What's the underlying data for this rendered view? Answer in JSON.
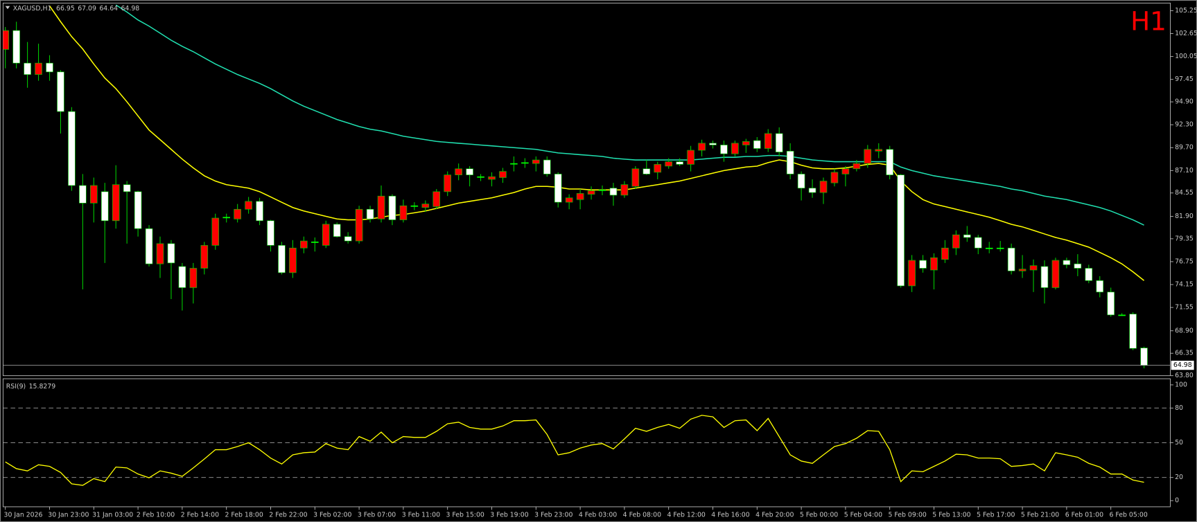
{
  "chart_data": [
    {
      "type": "candlestick",
      "title": "XAGUSD,H1",
      "timeframe_label": "H1",
      "categories": [
        "30 Jan 2026",
        null,
        null,
        null,
        "30 Jan 23:00",
        null,
        null,
        null,
        "31 Jan 03:00",
        null,
        null,
        null,
        "2 Feb 10:00",
        null,
        null,
        null,
        "2 Feb 14:00",
        null,
        null,
        null,
        "2 Feb 18:00",
        null,
        null,
        null,
        "2 Feb 22:00",
        null,
        null,
        null,
        "3 Feb 02:00",
        null,
        null,
        null,
        "3 Feb 07:00",
        null,
        null,
        null,
        "3 Feb 11:00",
        null,
        null,
        null,
        "3 Feb 15:00",
        null,
        null,
        null,
        "3 Feb 19:00",
        null,
        null,
        null,
        "3 Feb 23:00",
        null,
        null,
        null,
        "4 Feb 03:00",
        null,
        null,
        null,
        "4 Feb 08:00",
        null,
        null,
        null,
        "4 Feb 12:00",
        null,
        null,
        null,
        "4 Feb 16:00",
        null,
        null,
        null,
        "4 Feb 20:00",
        null,
        null,
        null,
        "5 Feb 00:00",
        null,
        null,
        null,
        "5 Feb 04:00",
        null,
        null,
        null,
        "5 Feb 09:00",
        null,
        null,
        null,
        "5 Feb 13:00",
        null,
        null,
        null,
        "5 Feb 17:00",
        null,
        null,
        null,
        "5 Feb 21:00",
        null,
        null,
        null,
        "6 Feb 01:00",
        null,
        null,
        null,
        "6 Feb 05:00",
        null,
        null,
        null
      ],
      "open": [
        100.85,
        103.0,
        99.3,
        98.0,
        99.3,
        98.3,
        93.8,
        85.4,
        83.4,
        84.7,
        81.4,
        85.5,
        84.7,
        80.5,
        76.5,
        78.8,
        76.2,
        73.8,
        76.0,
        78.6,
        81.8,
        81.6,
        82.7,
        83.6,
        81.4,
        78.6,
        75.5,
        78.3,
        79.0,
        78.6,
        81.0,
        79.6,
        79.1,
        82.7,
        81.6,
        84.2,
        81.5,
        83.1,
        82.9,
        83.0,
        84.7,
        86.6,
        87.3,
        86.4,
        86.1,
        86.3,
        87.9,
        88.0,
        87.9,
        88.3,
        86.7,
        83.5,
        83.8,
        84.4,
        84.9,
        85.1,
        84.3,
        85.3,
        87.3,
        86.9,
        87.6,
        88.1,
        87.8,
        89.4,
        90.2,
        90.0,
        89.0,
        90.0,
        90.5,
        89.6,
        91.3,
        89.3,
        86.7,
        85.1,
        84.6,
        85.7,
        86.7,
        87.3,
        87.9,
        89.3,
        89.5,
        86.6,
        74.0,
        76.9,
        75.8,
        77.0,
        78.3,
        79.8,
        79.5,
        78.3,
        78.3,
        78.3,
        75.7,
        75.8,
        76.2,
        73.8,
        76.9,
        76.5,
        76.0,
        74.6,
        73.3,
        70.7,
        70.8,
        66.95
      ],
      "high": [
        103.4,
        104.0,
        101.7,
        101.5,
        100.2,
        98.5,
        94.3,
        86.7,
        86.3,
        85.7,
        87.7,
        85.9,
        84.8,
        80.9,
        79.6,
        79.2,
        76.6,
        76.6,
        79.0,
        82.2,
        82.2,
        83.3,
        84.1,
        84.0,
        81.5,
        79.0,
        79.2,
        79.6,
        79.5,
        81.4,
        81.2,
        80.1,
        83.1,
        83.1,
        85.4,
        84.4,
        83.8,
        83.5,
        83.7,
        85.0,
        87.0,
        87.9,
        87.6,
        86.7,
        86.9,
        87.4,
        88.7,
        88.5,
        88.7,
        88.7,
        86.9,
        84.4,
        85.0,
        85.3,
        85.4,
        85.7,
        85.9,
        87.6,
        88.3,
        88.1,
        88.5,
        88.5,
        89.9,
        90.6,
        90.5,
        90.5,
        90.5,
        90.7,
        90.9,
        91.8,
        92.0,
        90.2,
        87.0,
        86.1,
        86.3,
        87.3,
        87.6,
        88.3,
        90.0,
        90.2,
        89.9,
        86.7,
        77.5,
        77.5,
        77.7,
        79.2,
        80.3,
        80.8,
        79.8,
        79.0,
        79.1,
        78.8,
        77.5,
        77.0,
        76.9,
        77.2,
        77.2,
        77.6,
        76.4,
        75.1,
        73.8,
        70.9,
        71.0,
        67.09
      ],
      "low": [
        98.7,
        98.7,
        96.5,
        97.3,
        97.3,
        91.3,
        84.8,
        73.6,
        81.2,
        76.6,
        80.5,
        78.8,
        79.6,
        76.2,
        74.9,
        72.5,
        71.2,
        72.0,
        75.3,
        78.1,
        81.2,
        81.2,
        82.2,
        80.9,
        77.9,
        75.3,
        74.9,
        77.7,
        77.9,
        78.3,
        79.5,
        78.8,
        78.8,
        81.2,
        81.2,
        80.9,
        81.2,
        82.6,
        82.4,
        82.7,
        84.2,
        86.0,
        85.3,
        85.9,
        85.3,
        85.7,
        87.0,
        87.4,
        87.0,
        86.4,
        82.9,
        82.7,
        82.7,
        83.8,
        84.3,
        83.1,
        84.0,
        85.0,
        86.6,
        86.1,
        87.3,
        87.6,
        87.0,
        88.7,
        89.6,
        88.1,
        88.7,
        89.1,
        89.2,
        89.2,
        88.7,
        86.1,
        83.7,
        84.0,
        83.3,
        85.3,
        85.3,
        87.0,
        87.4,
        88.5,
        86.1,
        73.8,
        73.3,
        75.5,
        73.6,
        76.6,
        77.5,
        79.0,
        77.6,
        77.7,
        77.9,
        75.3,
        74.9,
        73.3,
        72.0,
        73.6,
        76.0,
        75.1,
        74.3,
        72.7,
        70.5,
        70.6,
        66.7,
        64.64
      ],
      "close": [
        103.0,
        99.3,
        98.0,
        99.3,
        98.3,
        93.8,
        85.4,
        83.4,
        85.4,
        81.4,
        85.5,
        84.7,
        80.5,
        76.5,
        78.8,
        76.6,
        73.8,
        76.0,
        78.6,
        81.7,
        81.8,
        82.7,
        83.6,
        81.4,
        78.6,
        75.5,
        78.3,
        79.1,
        79.0,
        81.0,
        79.6,
        79.1,
        82.7,
        81.6,
        84.2,
        81.5,
        83.1,
        83.1,
        83.3,
        84.7,
        86.6,
        87.3,
        86.6,
        86.4,
        86.4,
        87.0,
        87.9,
        88.0,
        88.3,
        86.7,
        83.5,
        84.0,
        84.5,
        84.8,
        84.9,
        84.3,
        85.5,
        87.3,
        86.7,
        87.8,
        88.1,
        87.8,
        89.4,
        90.2,
        90.0,
        89.0,
        90.2,
        90.4,
        89.6,
        91.3,
        89.2,
        86.7,
        85.1,
        84.6,
        85.9,
        86.9,
        87.3,
        87.9,
        89.5,
        89.5,
        86.6,
        74.0,
        76.9,
        76.0,
        77.2,
        78.3,
        79.8,
        79.5,
        78.3,
        78.3,
        78.3,
        75.7,
        75.9,
        76.3,
        73.8,
        76.9,
        76.4,
        76.0,
        74.6,
        73.3,
        70.7,
        70.7,
        66.9,
        64.98
      ],
      "up_color": "#ff0000",
      "down_color": "#ffffff",
      "doji_color": "#00ff00",
      "wick_color": "#00c800",
      "lines": [
        {
          "color": "#ffff00",
          "values": [
            null,
            null,
            null,
            null,
            105.8,
            104.0,
            102.3,
            100.9,
            99.2,
            97.6,
            96.4,
            94.9,
            93.3,
            91.7,
            90.6,
            89.5,
            88.4,
            87.4,
            86.5,
            85.9,
            85.5,
            85.3,
            85.1,
            84.7,
            84.1,
            83.5,
            82.9,
            82.5,
            82.2,
            81.9,
            81.6,
            81.5,
            81.5,
            81.6,
            81.8,
            82.0,
            82.1,
            82.3,
            82.5,
            82.8,
            83.1,
            83.4,
            83.6,
            83.8,
            84.0,
            84.3,
            84.6,
            85.0,
            85.3,
            85.3,
            85.2,
            85.0,
            85.0,
            84.9,
            84.9,
            84.9,
            84.9,
            85.1,
            85.3,
            85.5,
            85.7,
            85.9,
            86.2,
            86.5,
            86.8,
            87.1,
            87.3,
            87.5,
            87.6,
            88.0,
            88.3,
            88.1,
            87.7,
            87.4,
            87.3,
            87.3,
            87.4,
            87.6,
            87.8,
            87.9,
            87.7,
            85.9,
            84.7,
            83.8,
            83.3,
            83.0,
            82.7,
            82.4,
            82.1,
            81.8,
            81.4,
            81.0,
            80.7,
            80.3,
            79.9,
            79.5,
            79.2,
            78.8,
            78.4,
            77.8,
            77.2,
            76.5,
            75.6,
            74.6
          ]
        },
        {
          "color": "#20e0b0",
          "values": [
            null,
            null,
            null,
            null,
            null,
            null,
            null,
            null,
            null,
            null,
            105.9,
            105.1,
            104.2,
            103.5,
            102.7,
            101.9,
            101.2,
            100.6,
            99.9,
            99.2,
            98.6,
            98.0,
            97.5,
            97.0,
            96.4,
            95.7,
            95.0,
            94.4,
            93.9,
            93.4,
            92.9,
            92.5,
            92.1,
            91.8,
            91.6,
            91.3,
            91.0,
            90.8,
            90.6,
            90.4,
            90.3,
            90.2,
            90.1,
            90.0,
            89.9,
            89.8,
            89.7,
            89.6,
            89.5,
            89.3,
            89.1,
            89.0,
            88.9,
            88.8,
            88.7,
            88.5,
            88.4,
            88.3,
            88.3,
            88.3,
            88.3,
            88.3,
            88.3,
            88.4,
            88.5,
            88.6,
            88.6,
            88.7,
            88.7,
            88.8,
            88.8,
            88.7,
            88.5,
            88.3,
            88.2,
            88.1,
            88.1,
            88.1,
            88.1,
            88.1,
            88.1,
            87.5,
            87.1,
            86.8,
            86.5,
            86.3,
            86.1,
            85.9,
            85.7,
            85.5,
            85.3,
            85.0,
            84.8,
            84.5,
            84.2,
            84.0,
            83.8,
            83.5,
            83.2,
            82.9,
            82.5,
            82.0,
            81.5,
            80.9
          ]
        }
      ],
      "ylim": [
        63.8,
        106.12
      ],
      "yticks": [
        105.25,
        102.65,
        100.05,
        97.45,
        {
          "value": 94.9,
          "label": "94.90"
        },
        {
          "value": 92.3,
          "label": "92.30"
        },
        {
          "value": 89.7,
          "label": "89.70"
        },
        {
          "value": 87.1,
          "label": "87.10"
        },
        84.55,
        {
          "value": 81.9,
          "label": "81.90"
        },
        79.35,
        76.75,
        74.15,
        71.55,
        {
          "value": 68.9,
          "label": "68.90"
        },
        66.35,
        {
          "value": 63.8,
          "label": "63.80"
        }
      ],
      "price_line": true
    },
    {
      "type": "line",
      "title": "RSI(9)",
      "color": "#ffff00",
      "values": [
        33.5,
        27.6,
        25.7,
        31,
        29.6,
        24.3,
        14.5,
        13.2,
        19,
        16.4,
        29,
        28.3,
        23,
        19.7,
        25.7,
        23.7,
        21,
        28.3,
        36,
        44,
        44,
        46.7,
        50,
        44,
        36.8,
        31.6,
        39.5,
        41.4,
        42,
        49.3,
        45.4,
        44,
        55.3,
        51.3,
        59.2,
        50,
        55.3,
        54.6,
        54.6,
        59.9,
        66.4,
        67.8,
        63.2,
        61.8,
        61.8,
        64.5,
        69,
        69,
        69.7,
        57.2,
        39.5,
        41.4,
        45.4,
        48,
        49.3,
        44.7,
        53.3,
        62.5,
        59.9,
        63.2,
        65.8,
        62.5,
        70.4,
        73.7,
        72.4,
        63.2,
        69,
        69.7,
        60.5,
        71,
        55.3,
        39.5,
        34.2,
        32.2,
        39.5,
        46.7,
        49.3,
        53.9,
        60.5,
        59.9,
        44,
        16.4,
        25.7,
        25,
        29.6,
        34.2,
        40.1,
        39.5,
        36.8,
        36.8,
        36.2,
        29.6,
        30.3,
        31.6,
        25.7,
        41.4,
        39.5,
        37.5,
        32.2,
        29,
        23,
        23,
        17.8,
        15.8279
      ],
      "ylim": [
        -5.3,
        105.3
      ],
      "yticks": [
        100,
        80,
        50,
        20,
        0
      ],
      "grid": "dashed"
    }
  ]
}
